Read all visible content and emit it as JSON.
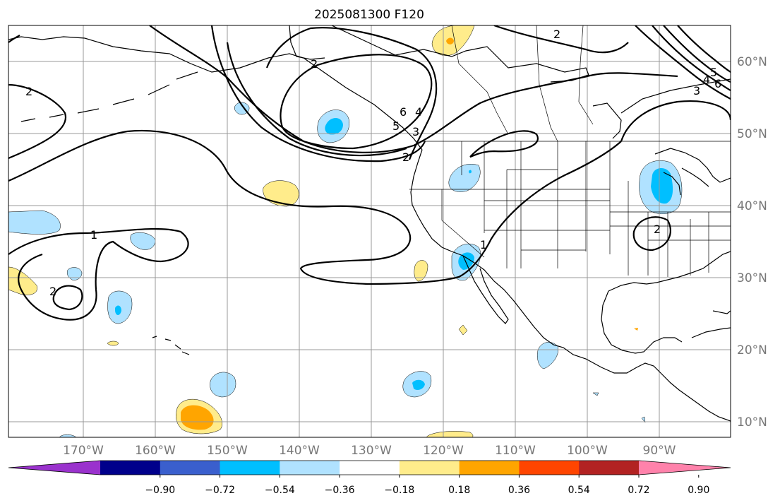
{
  "title": "2025081300 F120",
  "longitude_labels": [
    "170°W",
    "160°W",
    "150°W",
    "140°W",
    "130°W",
    "120°W",
    "110°W",
    "100°W",
    "90°W"
  ],
  "latitude_labels": [
    "60°N",
    "50°N",
    "40°N",
    "30°N",
    "20°N",
    "10°N"
  ],
  "colorbar": {
    "tick_labels": [
      "−0.90",
      "−0.72",
      "−0.54",
      "−0.36",
      "−0.18",
      "0.18",
      "0.36",
      "0.54",
      "0.72",
      "0.90"
    ],
    "colors": [
      "#9a32cd",
      "#00008b",
      "#3a5fcd",
      "#00bfff",
      "#b0e2ff",
      "#ffffff",
      "#ffec8b",
      "#ffa500",
      "#ff4500",
      "#b22222",
      "#ff82ab"
    ]
  },
  "contour_labels": [
    "2",
    "1",
    "2",
    "2",
    "2",
    "3",
    "4",
    "5",
    "6",
    "2",
    "3",
    "4",
    "5",
    "6",
    "1",
    "2"
  ],
  "fill_colors": {
    "light_blue": "#b0e2ff",
    "deep_sky_blue": "#00bfff",
    "light_yellow": "#ffec8b",
    "orange": "#ffa500"
  }
}
